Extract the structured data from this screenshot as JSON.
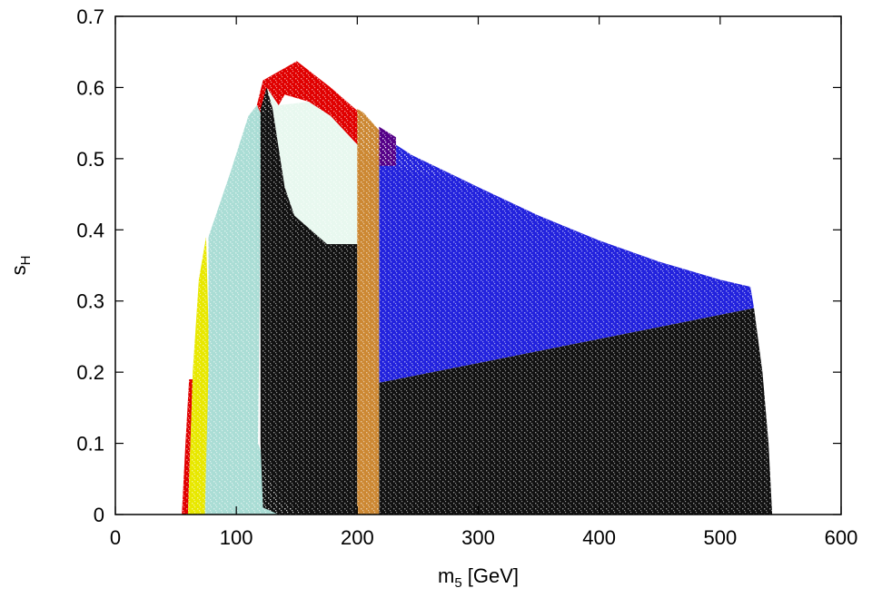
{
  "chart_data": {
    "type": "scatter",
    "xlabel": "m5 [GeV]",
    "ylabel": "sH",
    "xlim": [
      0,
      600
    ],
    "ylim": [
      0,
      0.7
    ],
    "x_ticks": [
      "0",
      "100",
      "200",
      "300",
      "400",
      "500",
      "600"
    ],
    "y_ticks": [
      "0",
      "0.1",
      "0.2",
      "0.3",
      "0.4",
      "0.5",
      "0.6",
      "0.7"
    ],
    "xlabel_parts": {
      "main": "m",
      "sub": "5",
      "rest": " [GeV]"
    },
    "ylabel_parts": {
      "main": "s",
      "sub": "H"
    },
    "grid": false,
    "legend": "none",
    "regions": [
      {
        "color": "#e00000",
        "polygon": [
          [
            55,
            0
          ],
          [
            58,
            0.1
          ],
          [
            61,
            0.19
          ],
          [
            64,
            0.19
          ],
          [
            62,
            0.1
          ],
          [
            60,
            0
          ]
        ]
      },
      {
        "color": "#e8e800",
        "polygon": [
          [
            60,
            0
          ],
          [
            62,
            0.1
          ],
          [
            64,
            0.2
          ],
          [
            69,
            0.33
          ],
          [
            75,
            0.39
          ],
          [
            78,
            0.2
          ],
          [
            76,
            0
          ]
        ]
      },
      {
        "color": "#aaddd5",
        "polygon": [
          [
            74,
            0
          ],
          [
            77,
            0.2
          ],
          [
            77,
            0.39
          ],
          [
            95,
            0.48
          ],
          [
            110,
            0.56
          ],
          [
            117,
            0.575
          ],
          [
            121,
            0.57
          ],
          [
            118,
            0.1
          ],
          [
            135,
            0.02
          ],
          [
            155,
            0
          ]
        ]
      },
      {
        "color": "#e00000",
        "polygon": [
          [
            117,
            0.575
          ],
          [
            122,
            0.61
          ],
          [
            150,
            0.637
          ],
          [
            178,
            0.6
          ],
          [
            205,
            0.56
          ],
          [
            218,
            0.53
          ],
          [
            245,
            0.5
          ],
          [
            270,
            0.475
          ],
          [
            225,
            0.49
          ],
          [
            200,
            0.52
          ],
          [
            175,
            0.56
          ],
          [
            160,
            0.58
          ],
          [
            140,
            0.59
          ],
          [
            135,
            0.575
          ],
          [
            125,
            0.565
          ],
          [
            120,
            0.565
          ]
        ]
      },
      {
        "color": "#e8f8ef",
        "polygon": [
          [
            125,
            0.6
          ],
          [
            135,
            0.575
          ],
          [
            160,
            0.58
          ],
          [
            178,
            0.56
          ],
          [
            200,
            0.52
          ],
          [
            200,
            0.38
          ],
          [
            175,
            0.38
          ],
          [
            148,
            0.42
          ],
          [
            140,
            0.46
          ],
          [
            130,
            0.57
          ]
        ]
      },
      {
        "color": "#111111",
        "polygon": [
          [
            120,
            0.57
          ],
          [
            125,
            0.6
          ],
          [
            130,
            0.57
          ],
          [
            140,
            0.46
          ],
          [
            148,
            0.42
          ],
          [
            175,
            0.38
          ],
          [
            200,
            0.38
          ],
          [
            200,
            0
          ],
          [
            135,
            0
          ],
          [
            122,
            0.01
          ],
          [
            120,
            0.1
          ]
        ]
      },
      {
        "color": "#2222dd",
        "polygon": [
          [
            218,
            0.535
          ],
          [
            245,
            0.505
          ],
          [
            300,
            0.46
          ],
          [
            350,
            0.42
          ],
          [
            400,
            0.385
          ],
          [
            450,
            0.355
          ],
          [
            500,
            0.33
          ],
          [
            525,
            0.32
          ],
          [
            528,
            0.29
          ],
          [
            218,
            0.185
          ]
        ]
      },
      {
        "color": "#550088",
        "polygon": [
          [
            218,
            0.545
          ],
          [
            232,
            0.53
          ],
          [
            232,
            0.49
          ],
          [
            218,
            0.49
          ]
        ]
      },
      {
        "color": "#111111",
        "polygon": [
          [
            218,
            0.185
          ],
          [
            528,
            0.29
          ],
          [
            535,
            0.2
          ],
          [
            540,
            0.1
          ],
          [
            543,
            0
          ],
          [
            218,
            0
          ]
        ]
      },
      {
        "color": "#cc8833",
        "polygon": [
          [
            200,
            0
          ],
          [
            218,
            0
          ],
          [
            218,
            0.54
          ],
          [
            205,
            0.565
          ],
          [
            200,
            0.57
          ]
        ]
      }
    ]
  }
}
